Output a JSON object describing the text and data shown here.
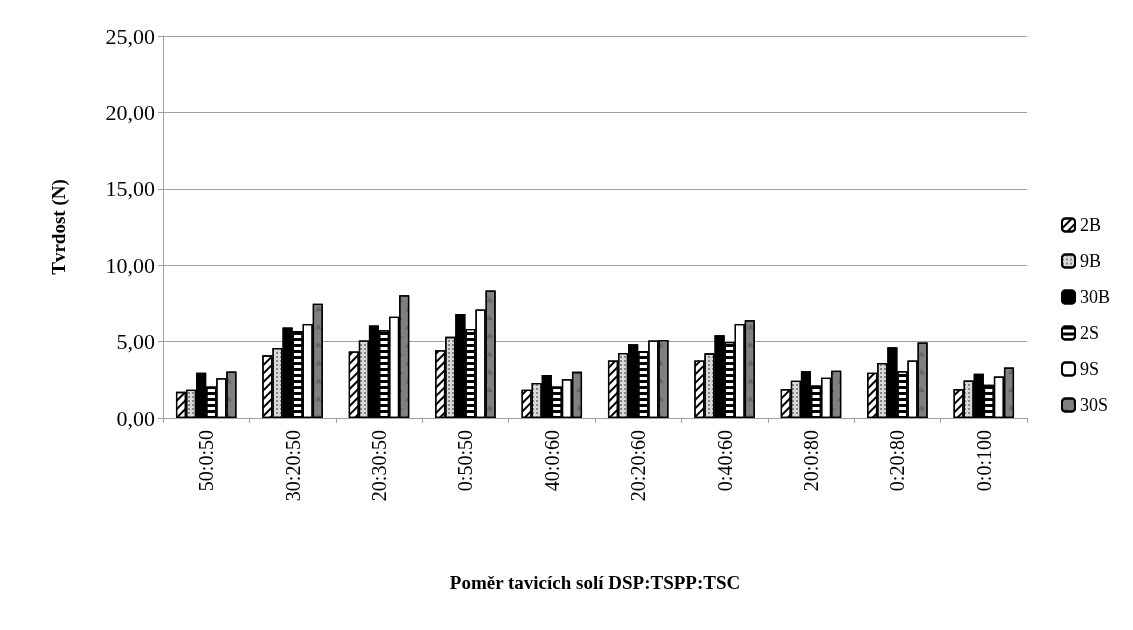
{
  "chart_data": {
    "type": "bar",
    "xlabel": "Poměr tavicích solí DSP:TSPP:TSC",
    "ylabel": "Tvrdost (N)",
    "categories": [
      "50:0:50",
      "30:20:50",
      "20:30:50",
      "0:50:50",
      "40:0:60",
      "20:20:60",
      "0:40:60",
      "20:0:80",
      "0:20:80",
      "0:0:100"
    ],
    "series": [
      {
        "name": "2B",
        "color": "#ffffff",
        "values": [
          1.71,
          4.1,
          4.35,
          4.44,
          1.85,
          3.77,
          3.77,
          1.88,
          2.96,
          1.88
        ]
      },
      {
        "name": "9B",
        "color": "#d9d9d9",
        "values": [
          1.85,
          4.58,
          5.08,
          5.31,
          2.29,
          4.25,
          4.23,
          2.44,
          3.6,
          2.46
        ]
      },
      {
        "name": "30B",
        "color": "#000000",
        "values": [
          2.96,
          5.92,
          6.06,
          6.81,
          2.81,
          4.83,
          5.42,
          3.06,
          4.63,
          2.9
        ]
      },
      {
        "name": "2S",
        "color": "#ffffff",
        "values": [
          2.06,
          5.69,
          5.75,
          5.83,
          2.06,
          4.38,
          4.98,
          2.13,
          3.06,
          2.17
        ]
      },
      {
        "name": "9S",
        "color": "#ffffff",
        "values": [
          2.6,
          6.15,
          6.63,
          7.1,
          2.54,
          5.08,
          6.15,
          2.63,
          3.77,
          2.71
        ]
      },
      {
        "name": "30S",
        "color": "#808080",
        "values": [
          3.04,
          7.48,
          8.04,
          8.35,
          3.02,
          5.1,
          6.4,
          3.1,
          4.94,
          3.31
        ]
      }
    ],
    "ylim": [
      0,
      25
    ],
    "yticks": [
      {
        "value": 0,
        "label": "0,00"
      },
      {
        "value": 5,
        "label": "5,00"
      },
      {
        "value": 10,
        "label": "10,00"
      },
      {
        "value": 15,
        "label": "15,00"
      },
      {
        "value": 20,
        "label": "20,00"
      },
      {
        "value": 25,
        "label": "25,00"
      }
    ],
    "grid": "y",
    "legend": "right"
  }
}
